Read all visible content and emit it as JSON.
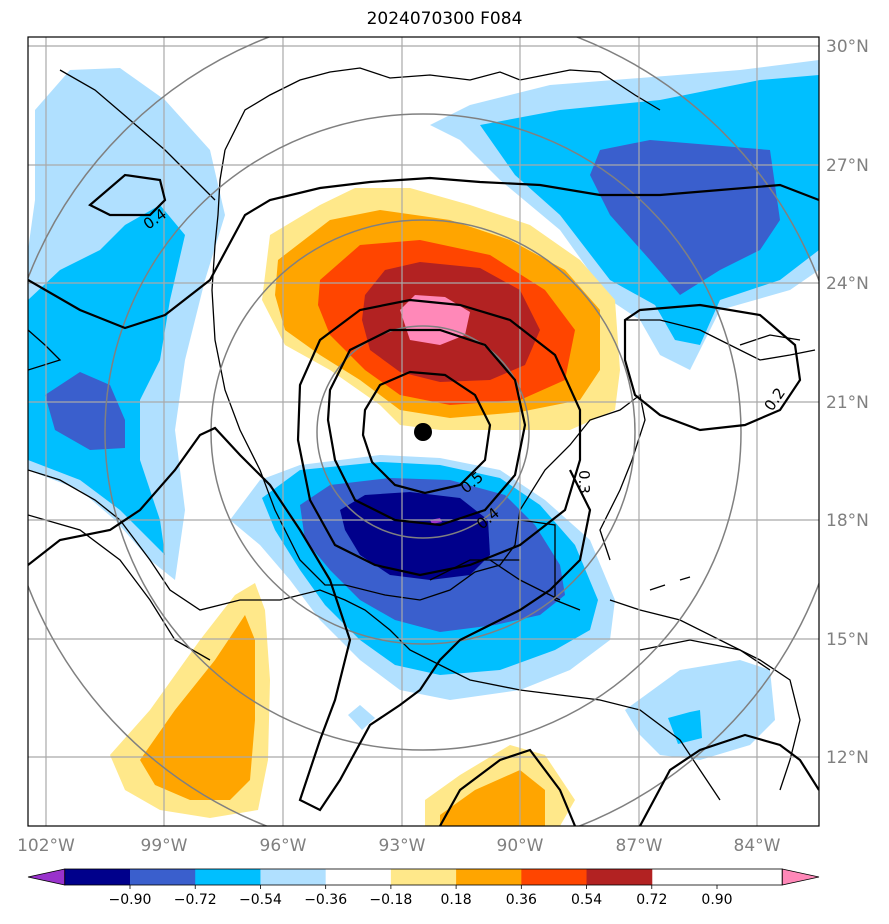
{
  "map": {
    "title": "2024070300 F084",
    "lon_labels": [
      "102°W",
      "99°W",
      "96°W",
      "93°W",
      "90°W",
      "87°W",
      "84°W"
    ],
    "lat_labels": [
      "30°N",
      "27°N",
      "24°N",
      "21°N",
      "18°N",
      "15°N",
      "12°N"
    ],
    "contour_labels": [
      "0.4",
      "0.2",
      "0.5",
      "0.4",
      "0.3"
    ],
    "center_marker": "black-dot"
  },
  "colorbar": {
    "tick_labels": [
      "−0.90",
      "−0.72",
      "−0.54",
      "−0.36",
      "−0.18",
      "0.18",
      "0.36",
      "0.54",
      "0.72",
      "0.90"
    ],
    "colors": [
      "#9932cc",
      "#00008b",
      "#3a5fcd",
      "#00bfff",
      "#b0e0ff",
      "#ffffff",
      "#ffe88a",
      "#ffa500",
      "#ff4500",
      "#b22222",
      "#ff88b8"
    ]
  },
  "colors": {
    "neg_strong": "#00008b",
    "neg_med": "#3a5fcd",
    "neg_light": "#00bfff",
    "neg_pale": "#b0e0ff",
    "pos_pale": "#ffe88a",
    "pos_light": "#ffa500",
    "pos_med": "#ff4500",
    "pos_strong": "#b22222",
    "pos_max": "#ff88b8",
    "grid": "#a9a9a9",
    "range_rings": "#808080"
  }
}
